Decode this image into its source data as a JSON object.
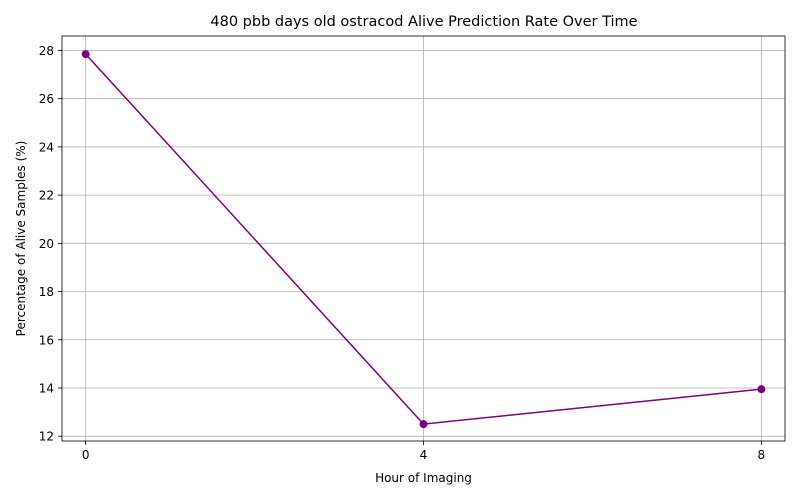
{
  "chart_data": {
    "type": "line",
    "title": "480 pbb days old ostracod Alive Prediction Rate Over Time",
    "xlabel": "Hour of Imaging",
    "ylabel": "Percentage of Alive Samples (%)",
    "x": [
      0,
      4,
      8
    ],
    "xticks": [
      "0",
      "4",
      "8"
    ],
    "yticks": [
      "12",
      "14",
      "16",
      "18",
      "20",
      "22",
      "24",
      "26",
      "28"
    ],
    "ylim": [
      11.8,
      28.6
    ],
    "xlim": [
      -0.28,
      8.28
    ],
    "grid": true,
    "series": [
      {
        "values": [
          27.85,
          12.5,
          13.95
        ],
        "color": "#800080",
        "marker": "circle"
      }
    ]
  }
}
